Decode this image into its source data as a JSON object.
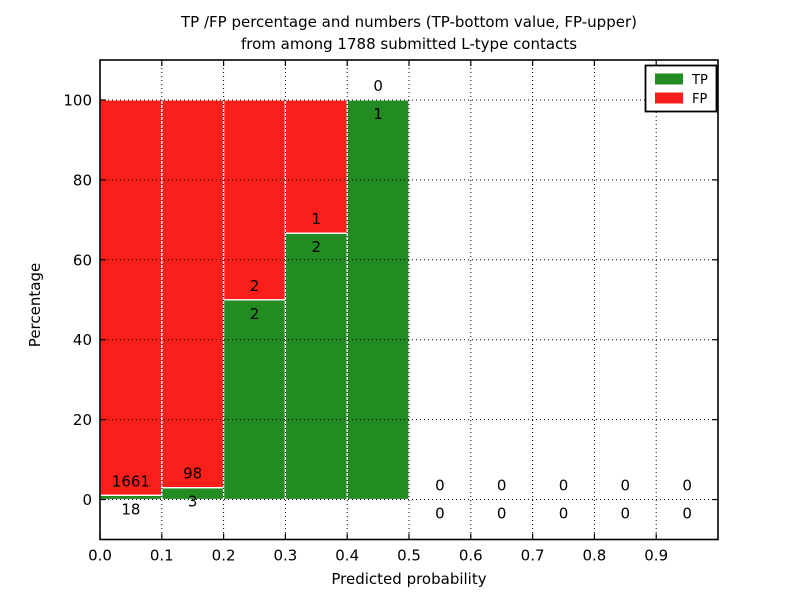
{
  "chart_data": {
    "type": "bar",
    "variant": "stacked-percentage-histogram",
    "title_line1": "TP /FP percentage and numbers (TP-bottom value, FP-upper)",
    "title_line2": "from among 1788 submitted L-type contacts",
    "title": "TP /FP percentage and numbers (TP-bottom value, FP-upper)\nfrom among 1788 submitted L-type contacts",
    "xlabel": "Predicted probability",
    "ylabel": "Percentage",
    "xlim": [
      0.0,
      1.0
    ],
    "ylim": [
      -10,
      110
    ],
    "xticks": [
      0.0,
      0.1,
      0.2,
      0.3,
      0.4,
      0.5,
      0.6,
      0.7,
      0.8,
      0.9
    ],
    "yticks": [
      0,
      20,
      40,
      60,
      80,
      100
    ],
    "grid": {
      "visible": true,
      "style": "dotted",
      "color": "#000000"
    },
    "total_contacts": 1788,
    "categories": [
      "0.0-0.1",
      "0.1-0.2",
      "0.2-0.3",
      "0.3-0.4",
      "0.4-0.5",
      "0.5-0.6",
      "0.6-0.7",
      "0.7-0.8",
      "0.8-0.9",
      "0.9-1.0"
    ],
    "bins": [
      {
        "x0": 0.0,
        "x1": 0.1,
        "tp": 18,
        "fp": 1661
      },
      {
        "x0": 0.1,
        "x1": 0.2,
        "tp": 3,
        "fp": 98
      },
      {
        "x0": 0.2,
        "x1": 0.3,
        "tp": 2,
        "fp": 2
      },
      {
        "x0": 0.3,
        "x1": 0.4,
        "tp": 2,
        "fp": 1
      },
      {
        "x0": 0.4,
        "x1": 0.5,
        "tp": 1,
        "fp": 0
      },
      {
        "x0": 0.5,
        "x1": 0.6,
        "tp": 0,
        "fp": 0
      },
      {
        "x0": 0.6,
        "x1": 0.7,
        "tp": 0,
        "fp": 0
      },
      {
        "x0": 0.7,
        "x1": 0.8,
        "tp": 0,
        "fp": 0
      },
      {
        "x0": 0.8,
        "x1": 0.9,
        "tp": 0,
        "fp": 0
      },
      {
        "x0": 0.9,
        "x1": 1.0,
        "tp": 0,
        "fp": 0
      }
    ],
    "series": [
      {
        "name": "TP",
        "color": "#228b22",
        "values": [
          18,
          3,
          2,
          2,
          1,
          0,
          0,
          0,
          0,
          0
        ]
      },
      {
        "name": "FP",
        "color": "#fb1f1b",
        "values": [
          1661,
          98,
          2,
          1,
          0,
          0,
          0,
          0,
          0,
          0
        ]
      }
    ],
    "colors": {
      "tp": "#228b22",
      "fp": "#fb1f1b",
      "bar_edge": "#ffffff"
    },
    "legend_position": "upper right",
    "legend_entries": [
      {
        "label": "TP",
        "color": "#228b22"
      },
      {
        "label": "FP",
        "color": "#fb1f1b"
      }
    ]
  }
}
